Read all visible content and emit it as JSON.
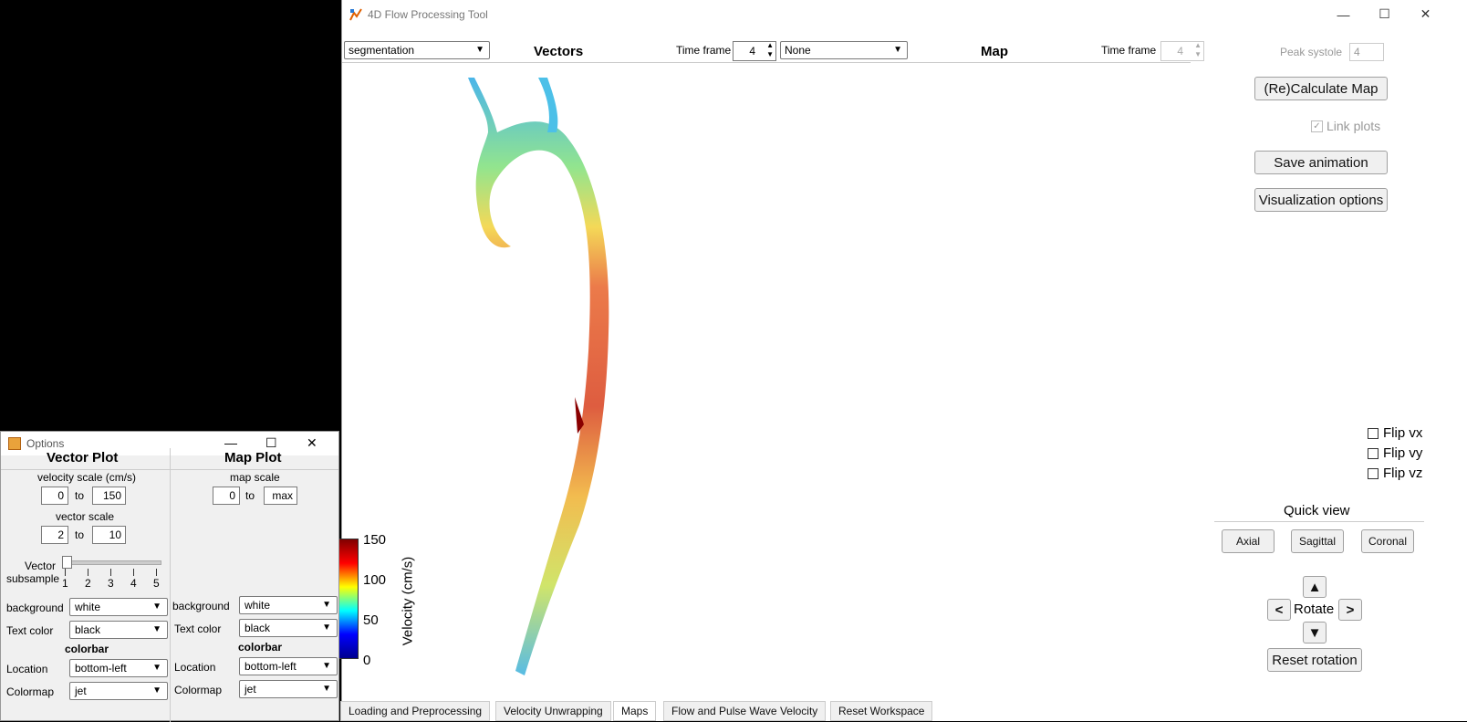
{
  "main_window": {
    "title": "4D Flow Processing Tool",
    "controls": {
      "minimize": "—",
      "maximize": "☐",
      "close": "✕"
    },
    "top_bar": {
      "segmentation_dropdown": "segmentation",
      "vectors_title": "Vectors",
      "time_frame_label": "Time frame",
      "time_frame_value": "4",
      "map_dropdown": "None",
      "map_title": "Map",
      "map_time_frame_label": "Time frame",
      "map_time_frame_value": "4"
    },
    "right_panel": {
      "peak_systole_label": "Peak systole",
      "peak_systole_value": "4",
      "recalculate_button": "(Re)Calculate Map",
      "link_plots_label": "Link plots",
      "save_animation_button": "Save animation",
      "visualization_options_button": "Visualization options",
      "flip_vx": "Flip vx",
      "flip_vy": "Flip vy",
      "flip_vz": "Flip vz",
      "quick_view_title": "Quick view",
      "axial_button": "Axial",
      "sagittal_button": "Sagittal",
      "coronal_button": "Coronal",
      "rotate_label": "Rotate",
      "rotate_up": "▲",
      "rotate_down": "▼",
      "rotate_left": "<",
      "rotate_right": ">",
      "reset_rotation_button": "Reset rotation"
    },
    "colorbar": {
      "label": "Velocity (cm/s)",
      "ticks": [
        "150",
        "100",
        "50",
        "0"
      ],
      "colormap": "jet"
    },
    "tabs": [
      {
        "label": "Loading and Preprocessing",
        "active": false
      },
      {
        "label": "Velocity Unwrapping",
        "active": false
      },
      {
        "label": "Maps",
        "active": true
      },
      {
        "label": "Flow and Pulse Wave Velocity",
        "active": false
      },
      {
        "label": "Reset Workspace",
        "active": false
      }
    ]
  },
  "options_window": {
    "title": "Options",
    "vector_plot": {
      "title": "Vector Plot",
      "velocity_scale_label": "velocity scale (cm/s)",
      "velocity_min": "0",
      "velocity_max": "150",
      "to": "to",
      "vector_scale_label": "vector scale",
      "vector_min": "2",
      "vector_max": "10",
      "subsample_label_1": "Vector",
      "subsample_label_2": "subsample",
      "subsample_ticks": [
        "1",
        "2",
        "3",
        "4",
        "5"
      ],
      "subsample_value": 1,
      "background_label": "background",
      "background_value": "white",
      "text_color_label": "Text color",
      "text_color_value": "black",
      "colorbar_heading": "colorbar",
      "location_label": "Location",
      "location_value": "bottom-left",
      "colormap_label": "Colormap",
      "colormap_value": "jet"
    },
    "map_plot": {
      "title": "Map Plot",
      "map_scale_label": "map scale",
      "map_min": "0",
      "map_max": "max",
      "to": "to",
      "background_label": "background",
      "background_value": "white",
      "text_color_label": "Text color",
      "text_color_value": "black",
      "colorbar_heading": "colorbar",
      "location_label": "Location",
      "location_value": "bottom-left",
      "colormap_label": "Colormap",
      "colormap_value": "jet"
    }
  }
}
